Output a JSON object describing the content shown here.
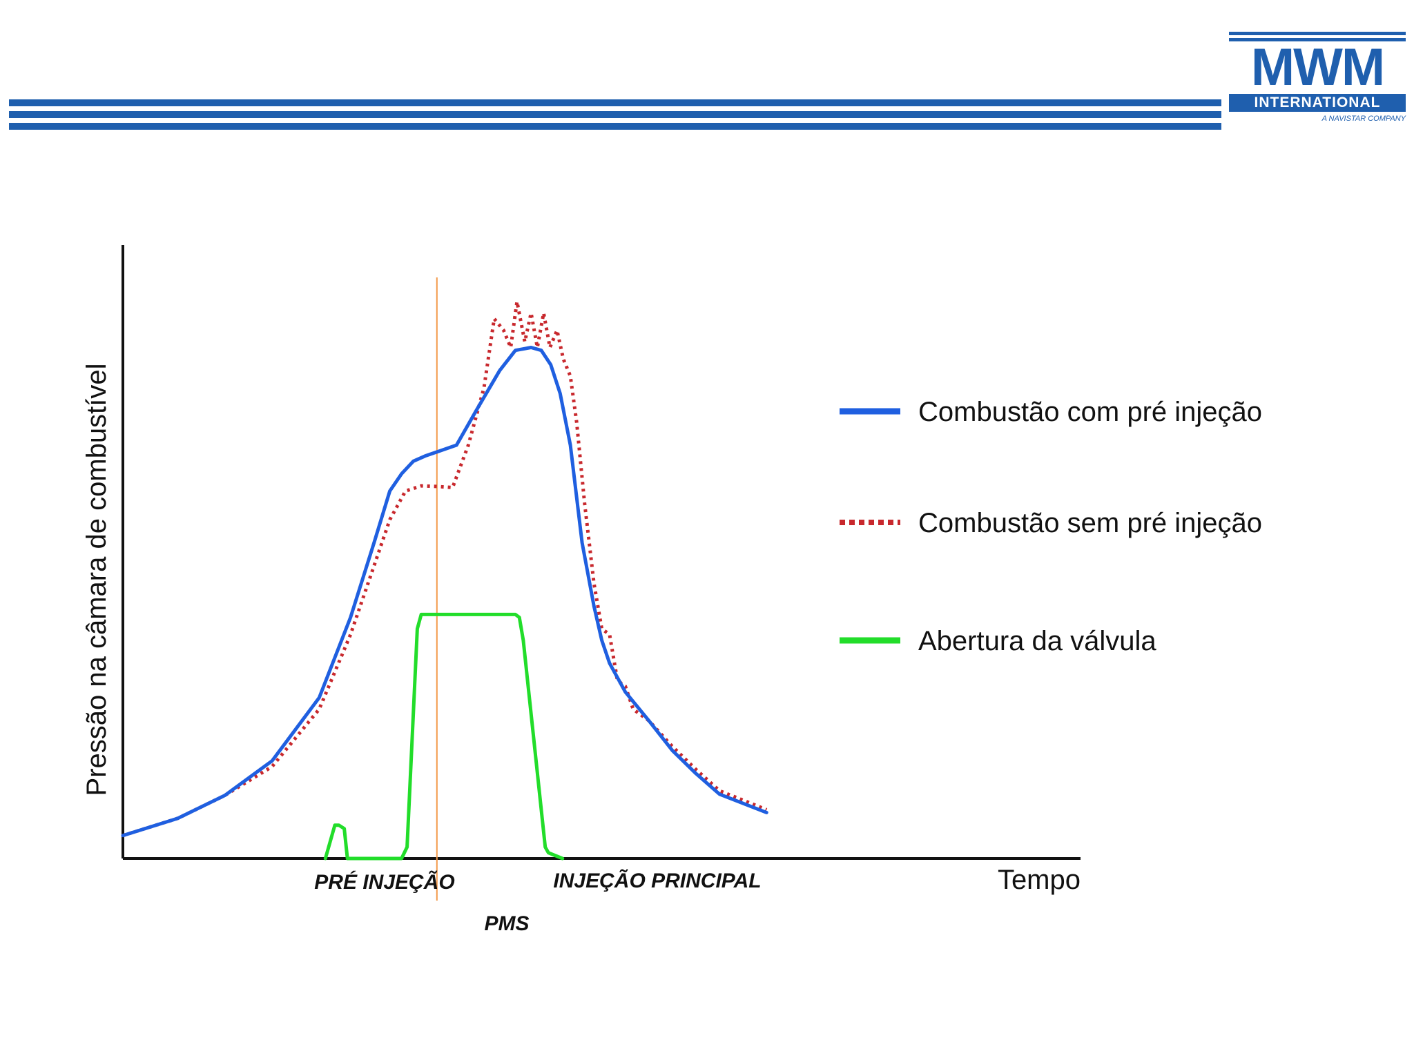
{
  "header": {
    "bar_color": "#1f5fae",
    "logo": {
      "brand": "MWM",
      "sub": "INTERNATIONAL",
      "tagline": "A NAVISTAR COMPANY",
      "color": "#1f5fae"
    }
  },
  "chart_data": {
    "type": "line",
    "title": "",
    "xlabel": "Tempo",
    "ylabel": "Pressão na câmara de combustível",
    "xlim": [
      0,
      100
    ],
    "ylim": [
      0,
      100
    ],
    "grid": false,
    "legend_position": "right",
    "series": [
      {
        "name": "Combustão com pré injeção",
        "color": "#1f5fe0",
        "style": "solid",
        "x": [
          0,
          7,
          13,
          19,
          25,
          29,
          32,
          34,
          35.5,
          37,
          38.5,
          40,
          42.5,
          45,
          48,
          50,
          52,
          53.3,
          54.5,
          55.7,
          57,
          58.5,
          60,
          61,
          62,
          64,
          67,
          70,
          73,
          76,
          82
        ],
        "y": [
          4,
          7,
          11,
          17,
          28,
          42,
          55,
          64,
          67,
          69.2,
          70.1,
          70.8,
          72,
          78,
          85,
          88.5,
          89,
          88.5,
          86,
          81,
          72,
          55,
          44,
          38,
          34,
          29,
          24,
          18.8,
          14.8,
          11.2,
          8
        ]
      },
      {
        "name": "Combustão sem pré injeção",
        "color": "#c8282d",
        "style": "dotted",
        "x": [
          0,
          7,
          13,
          19,
          25,
          29,
          32,
          34,
          36,
          38,
          40,
          42,
          44,
          46,
          47.3,
          48.5,
          49.4,
          50.2,
          51.2,
          52,
          52.8,
          53.6,
          54.4,
          55.3,
          56.1,
          57,
          57.8,
          58.8,
          60,
          61,
          62,
          63,
          64,
          65,
          66,
          67,
          70,
          73,
          76,
          82
        ],
        "y": [
          4,
          7,
          11,
          16,
          26,
          39,
          51,
          59,
          64,
          64.9,
          64.8,
          64.6,
          72,
          82,
          94,
          92,
          89,
          97,
          90,
          95,
          89,
          95,
          89,
          92,
          87,
          84,
          76,
          62,
          48,
          40,
          39,
          31,
          30,
          26,
          25,
          24,
          19.5,
          15.5,
          11.8,
          8.5
        ]
      },
      {
        "name": "Abertura da válvula",
        "color": "#22dd2a",
        "style": "solid",
        "x": [
          25.8,
          27,
          27.5,
          28.2,
          28.6,
          35.5,
          36.2,
          37.5,
          38,
          39,
          50,
          50.5,
          51,
          53.8,
          54.2,
          56
        ],
        "y": [
          0,
          5.8,
          5.8,
          5.2,
          0,
          0,
          2,
          40,
          42.5,
          42.5,
          42.5,
          42,
          38,
          2,
          1,
          0
        ]
      }
    ],
    "vertical_marker": {
      "x": 40,
      "color": "#f39a4a"
    },
    "annotations": {
      "pre_injection": "PRÉ INJEÇÃO",
      "main_injection": "INJEÇÃO PRINCIPAL",
      "pms": "PMS"
    }
  }
}
